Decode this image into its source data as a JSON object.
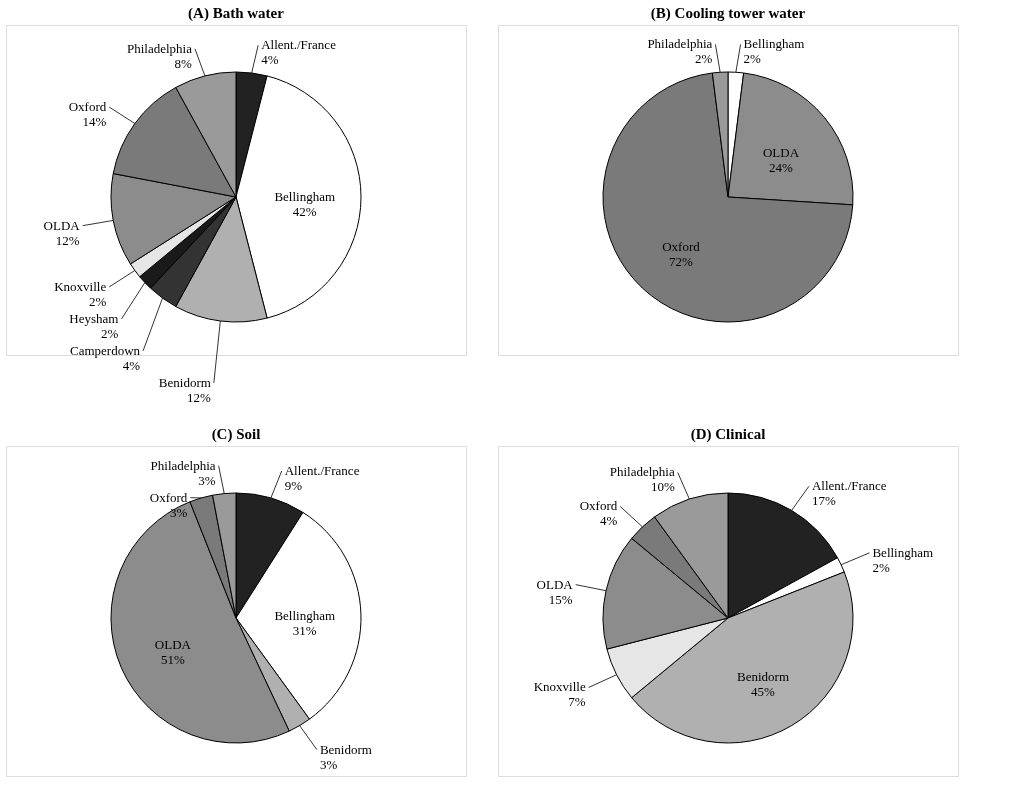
{
  "chart_data": [
    {
      "type": "pie",
      "title": "(A) Bath water",
      "categories": [
        "Allent./France",
        "Bellingham",
        "Benidorm",
        "Camperdown",
        "Heysham",
        "Knoxville",
        "OLDA",
        "Oxford",
        "Philadelphia"
      ],
      "values": [
        4,
        42,
        12,
        4,
        2,
        2,
        12,
        14,
        8
      ],
      "value_labels": [
        "4%",
        "42%",
        "12%",
        "4%",
        "2%",
        "2%",
        "12%",
        "14%",
        "8%"
      ],
      "colors": [
        "#222222",
        "#ffffff",
        "#b0b0b0",
        "#333333",
        "#1a1a1a",
        "#e6e6e6",
        "#8c8c8c",
        "#7a7a7a",
        "#9a9a9a"
      ]
    },
    {
      "type": "pie",
      "title": "(B) Cooling tower water",
      "categories": [
        "Bellingham",
        "OLDA",
        "Oxford",
        "Philadelphia"
      ],
      "values": [
        2,
        24,
        72,
        2
      ],
      "value_labels": [
        "2%",
        "24%",
        "72%",
        "2%"
      ],
      "colors": [
        "#ffffff",
        "#8c8c8c",
        "#7a7a7a",
        "#9a9a9a"
      ]
    },
    {
      "type": "pie",
      "title": "(C) Soil",
      "categories": [
        "Allent./France",
        "Bellingham",
        "Benidorm",
        "OLDA",
        "Oxford",
        "Philadelphia"
      ],
      "values": [
        9,
        31,
        3,
        51,
        3,
        3
      ],
      "value_labels": [
        "9%",
        "31%",
        "3%",
        "51%",
        "3%",
        "3%"
      ],
      "colors": [
        "#222222",
        "#ffffff",
        "#b0b0b0",
        "#8c8c8c",
        "#7a7a7a",
        "#9a9a9a"
      ]
    },
    {
      "type": "pie",
      "title": "(D) Clinical",
      "categories": [
        "Allent./France",
        "Bellingham",
        "Benidorm",
        "Knoxville",
        "OLDA",
        "Oxford",
        "Philadelphia"
      ],
      "values": [
        17,
        2,
        45,
        7,
        15,
        4,
        10
      ],
      "value_labels": [
        "17%",
        "2%",
        "45%",
        "7%",
        "15%",
        "4%",
        "10%"
      ],
      "colors": [
        "#222222",
        "#ffffff",
        "#b0b0b0",
        "#e6e6e6",
        "#8c8c8c",
        "#7a7a7a",
        "#9a9a9a"
      ]
    }
  ]
}
